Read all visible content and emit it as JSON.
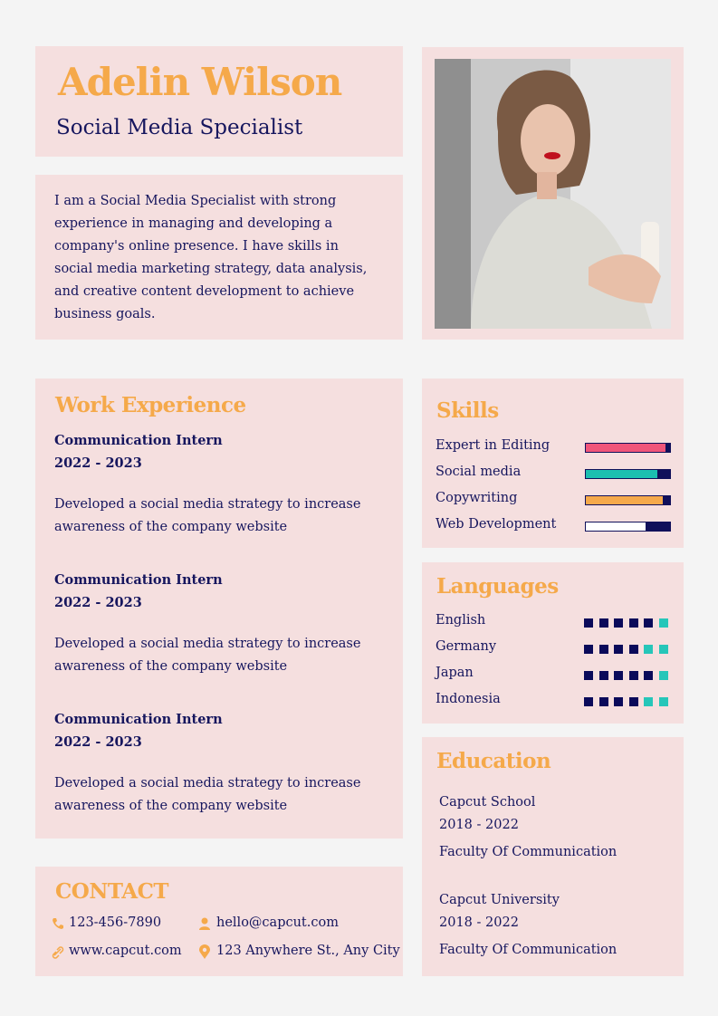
{
  "header": {
    "name": "Adelin Wilson",
    "role": "Social Media Specialist"
  },
  "summary": "I am a Social Media Specialist with strong experience in managing and developing a company's online presence. I have skills in social media marketing strategy, data analysis, and creative content development to achieve business goals.",
  "work": {
    "title": "Work Experience",
    "items": [
      {
        "position": "Communication Intern",
        "years": "2022 - 2023",
        "description": "Developed a social media strategy to increase awareness of the company website"
      },
      {
        "position": "Communication Intern",
        "years": "2022 - 2023",
        "description": "Developed a social media strategy to increase awareness of the company website"
      },
      {
        "position": "Communication Intern",
        "years": "2022 - 2023",
        "description": "Developed a social media strategy to increase awareness of the company website"
      }
    ]
  },
  "skills": {
    "title": "Skills",
    "range": [
      0,
      100
    ],
    "items": [
      {
        "name": "Expert in Editing",
        "level": 95,
        "color": "#f0557a"
      },
      {
        "name": "Social media",
        "level": 85,
        "color": "#1bbfb0"
      },
      {
        "name": "Copywriting",
        "level": 92,
        "color": "#f5a94a"
      },
      {
        "name": "Web Development",
        "level": 72,
        "color": "#ffffff"
      }
    ]
  },
  "languages": {
    "title": "Languages",
    "dots": 6,
    "items": [
      {
        "name": "English",
        "level": 5
      },
      {
        "name": "Germany",
        "level": 4
      },
      {
        "name": "Japan",
        "level": 5
      },
      {
        "name": "Indonesia",
        "level": 4
      }
    ]
  },
  "education": {
    "title": "Education",
    "items": [
      {
        "school": "Capcut School",
        "years": "2018 - 2022",
        "faculty": "Faculty Of Communication"
      },
      {
        "school": "Capcut University",
        "years": "2018 - 2022",
        "faculty": "Faculty Of Communication"
      }
    ]
  },
  "contact": {
    "title": "CONTACT",
    "phone": "123-456-7890",
    "email": "hello@capcut.com",
    "website": "www.capcut.com",
    "address": "123 Anywhere St., Any City"
  }
}
